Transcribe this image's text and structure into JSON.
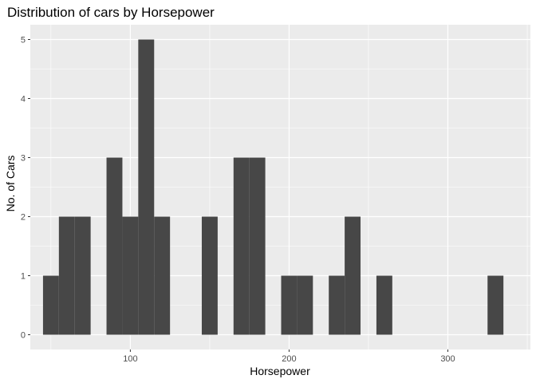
{
  "chart_data": {
    "type": "bar",
    "title": "Distribution of cars by Horsepower",
    "xlabel": "Horsepower",
    "ylabel": "No. of Cars",
    "bin_width": 10,
    "xlim": [
      37,
      352
    ],
    "ylim": [
      -0.25,
      5.25
    ],
    "x_ticks": [
      100,
      200,
      300
    ],
    "y_ticks": [
      0,
      1,
      2,
      3,
      4,
      5
    ],
    "grid": true,
    "bins": [
      {
        "x": 50,
        "count": 1
      },
      {
        "x": 60,
        "count": 2
      },
      {
        "x": 70,
        "count": 2
      },
      {
        "x": 90,
        "count": 3
      },
      {
        "x": 100,
        "count": 2
      },
      {
        "x": 110,
        "count": 5
      },
      {
        "x": 120,
        "count": 2
      },
      {
        "x": 150,
        "count": 2
      },
      {
        "x": 170,
        "count": 3
      },
      {
        "x": 180,
        "count": 3
      },
      {
        "x": 200,
        "count": 1
      },
      {
        "x": 210,
        "count": 1
      },
      {
        "x": 230,
        "count": 1
      },
      {
        "x": 240,
        "count": 2
      },
      {
        "x": 260,
        "count": 1
      },
      {
        "x": 330,
        "count": 1
      }
    ]
  },
  "colors": {
    "panel": "#ebebeb",
    "grid_major": "#ffffff",
    "bar": "#474747",
    "tick": "#333333"
  }
}
